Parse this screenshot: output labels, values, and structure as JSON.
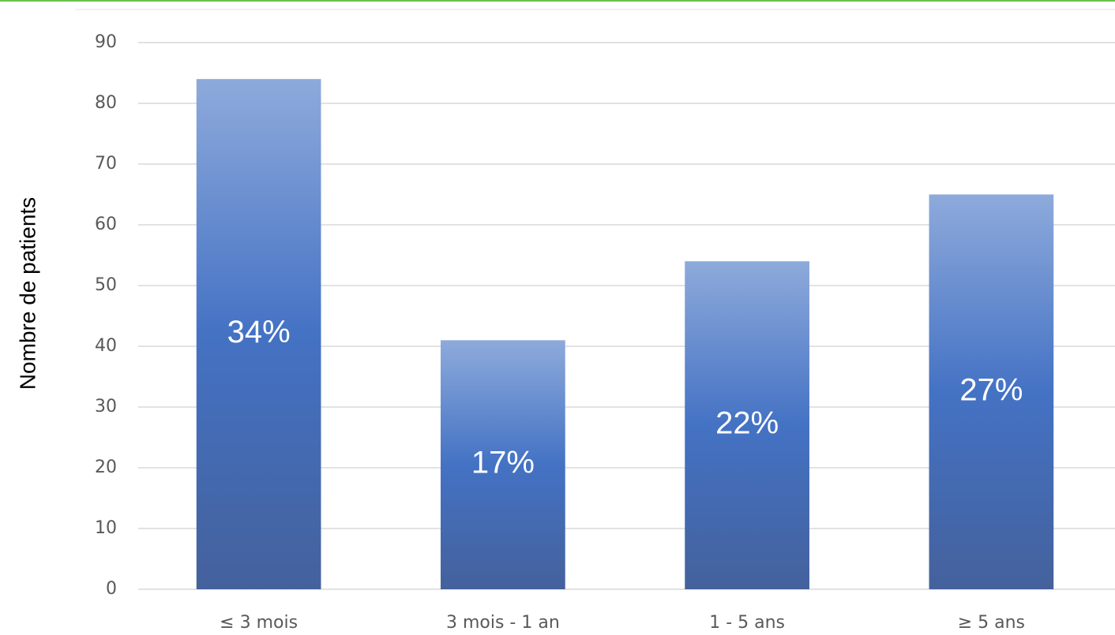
{
  "chart_data": {
    "type": "bar",
    "y_label": "Nombre de patients",
    "categories": [
      "≤ 3 mois",
      "3 mois - 1 an",
      "1 - 5 ans",
      "≥ 5 ans"
    ],
    "values": [
      84,
      41,
      54,
      65
    ],
    "bar_labels": [
      "34%",
      "17%",
      "22%",
      "27%"
    ],
    "color": "#4472c4",
    "ylim": [
      0,
      90
    ],
    "yticks": [
      0,
      10,
      20,
      30,
      40,
      50,
      60,
      70,
      80,
      90
    ],
    "grid": true
  }
}
